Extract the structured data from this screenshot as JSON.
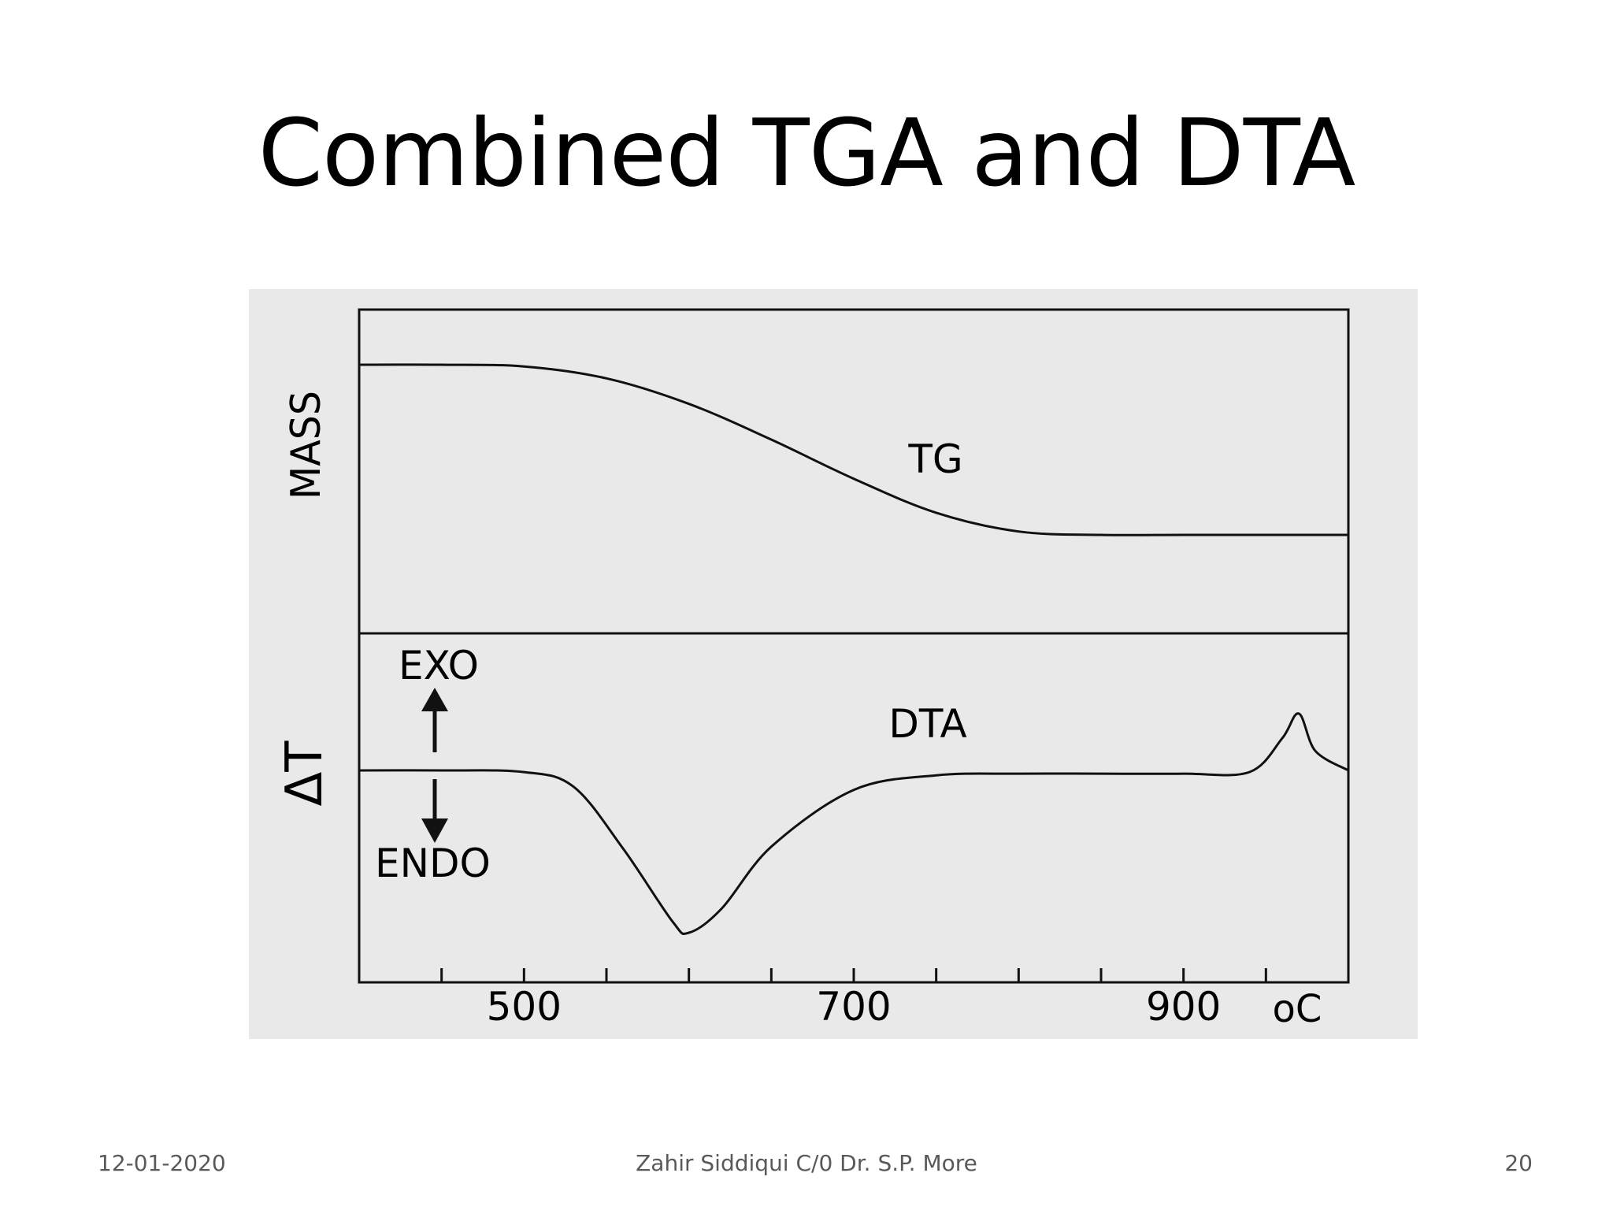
{
  "slide": {
    "title": "Combined TGA and DTA",
    "footer": {
      "date": "12-01-2020",
      "author": "Zahir Siddiqui C/0 Dr. S.P. More",
      "page": "20"
    }
  },
  "colors": {
    "figure_background": "#e9e9e9",
    "curve": "#111111",
    "text": "#000000",
    "footer_text": "#595959"
  },
  "chart_data": [
    {
      "type": "line",
      "panel": "top",
      "title": "",
      "xlabel": "",
      "ylabel": "MASS",
      "series": [
        {
          "name": "TG",
          "x": [
            400,
            450,
            500,
            550,
            600,
            650,
            700,
            750,
            800,
            850,
            900,
            950,
            1000
          ],
          "y": [
            1.0,
            1.0,
            0.99,
            0.92,
            0.77,
            0.56,
            0.33,
            0.13,
            0.02,
            0.0,
            0.0,
            0.0,
            0.0
          ]
        }
      ]
    },
    {
      "type": "line",
      "panel": "bottom",
      "title": "",
      "xlabel": "",
      "ylabel": "ΔT",
      "annotations": {
        "exo": "EXO",
        "endo": "ENDO"
      },
      "series": [
        {
          "name": "DTA",
          "x": [
            400,
            450,
            500,
            530,
            560,
            590,
            600,
            620,
            650,
            700,
            750,
            800,
            850,
            900,
            940,
            960,
            970,
            980,
            1000
          ],
          "y": [
            0.0,
            0.0,
            -0.01,
            -0.1,
            -0.48,
            -0.93,
            -1.0,
            -0.85,
            -0.47,
            -0.12,
            -0.03,
            -0.02,
            -0.02,
            -0.02,
            -0.01,
            0.2,
            0.35,
            0.12,
            0.0
          ]
        }
      ],
      "x_axis": {
        "range": [
          400,
          1000
        ],
        "tick_values": [
          450,
          500,
          550,
          600,
          650,
          700,
          750,
          800,
          850,
          900,
          950
        ],
        "tick_labels": [
          {
            "value": 500,
            "label": "500"
          },
          {
            "value": 700,
            "label": "700"
          },
          {
            "value": 900,
            "label": "900"
          }
        ],
        "unit": "oC"
      }
    }
  ]
}
